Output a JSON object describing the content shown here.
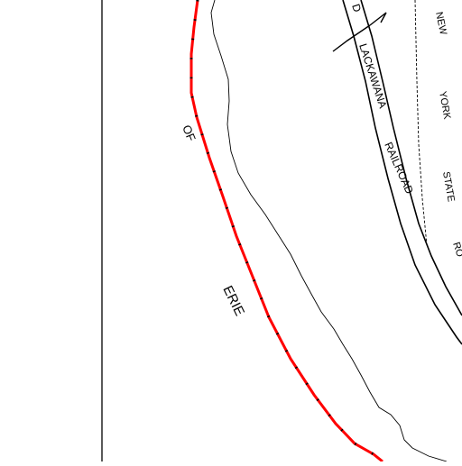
{
  "map": {
    "labels": {
      "railroad_line_1": "LACKAWANA",
      "railroad_line_2": "RAILROAD",
      "railroad_partial": "D",
      "road_word_1": "NEW",
      "road_word_2": "YORK",
      "road_word_3": "STATE",
      "road_word_4": "RO",
      "lake_word_1": "OF",
      "lake_word_2": "ERIE"
    },
    "colors": {
      "boundary": "#ff0000",
      "linework": "#000000",
      "background": "#ffffff"
    }
  }
}
